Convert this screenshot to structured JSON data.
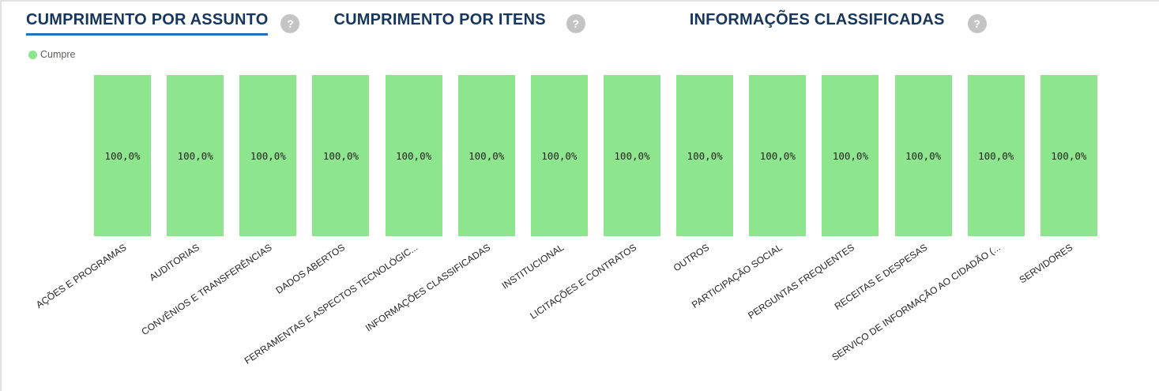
{
  "header": {
    "help_icon_glyph": "?",
    "tabs": [
      {
        "label": "CUMPRIMENTO POR ASSUNTO",
        "active": true
      },
      {
        "label": "CUMPRIMENTO POR ITENS",
        "active": false
      },
      {
        "label": "INFORMAÇÕES CLASSIFICADAS",
        "active": false
      }
    ]
  },
  "legend": {
    "label": "Cumpre",
    "color": "#8de58d"
  },
  "colors": {
    "tab_text": "#17365d",
    "active_tab_underline": "#1f72c1",
    "help_icon_bg": "#c4c4c4",
    "help_icon_fg": "#ffffff",
    "bar_fill": "#8de58d",
    "value_label": "#252423",
    "axis_label": "#252423",
    "panel_border": "#e2e2e2"
  },
  "chart_data": {
    "type": "bar",
    "title": "CUMPRIMENTO POR ASSUNTO",
    "xlabel": "",
    "ylabel": "",
    "unit": "%",
    "ylim": [
      0,
      100
    ],
    "grid": false,
    "legend_position": "top-left",
    "legend_entries": [
      "Cumpre"
    ],
    "bar_color": "#8de58d",
    "categories": [
      "AÇÕES E PROGRAMAS",
      "AUDITORIAS",
      "CONVÊNIOS E TRANSFERÊNCIAS",
      "DADOS ABERTOS",
      "FERRAMENTAS E ASPECTOS TECNOLÓGIC...",
      "INFORMAÇÕES CLASSIFICADAS",
      "INSTITUCIONAL",
      "LICITAÇÕES E CONTRATOS",
      "OUTROS",
      "PARTICIPAÇÃO SOCIAL",
      "PERGUNTAS FREQUENTES",
      "RECEITAS E DESPESAS",
      "SERVIÇO DE INFORMAÇÃO AO CIDADÃO (...",
      "SERVIDORES"
    ],
    "values": [
      100.0,
      100.0,
      100.0,
      100.0,
      100.0,
      100.0,
      100.0,
      100.0,
      100.0,
      100.0,
      100.0,
      100.0,
      100.0,
      100.0
    ],
    "display_values": [
      "100,0%",
      "100,0%",
      "100,0%",
      "100,0%",
      "100,0%",
      "100,0%",
      "100,0%",
      "100,0%",
      "100,0%",
      "100,0%",
      "100,0%",
      "100,0%",
      "100,0%",
      "100,0%"
    ]
  }
}
